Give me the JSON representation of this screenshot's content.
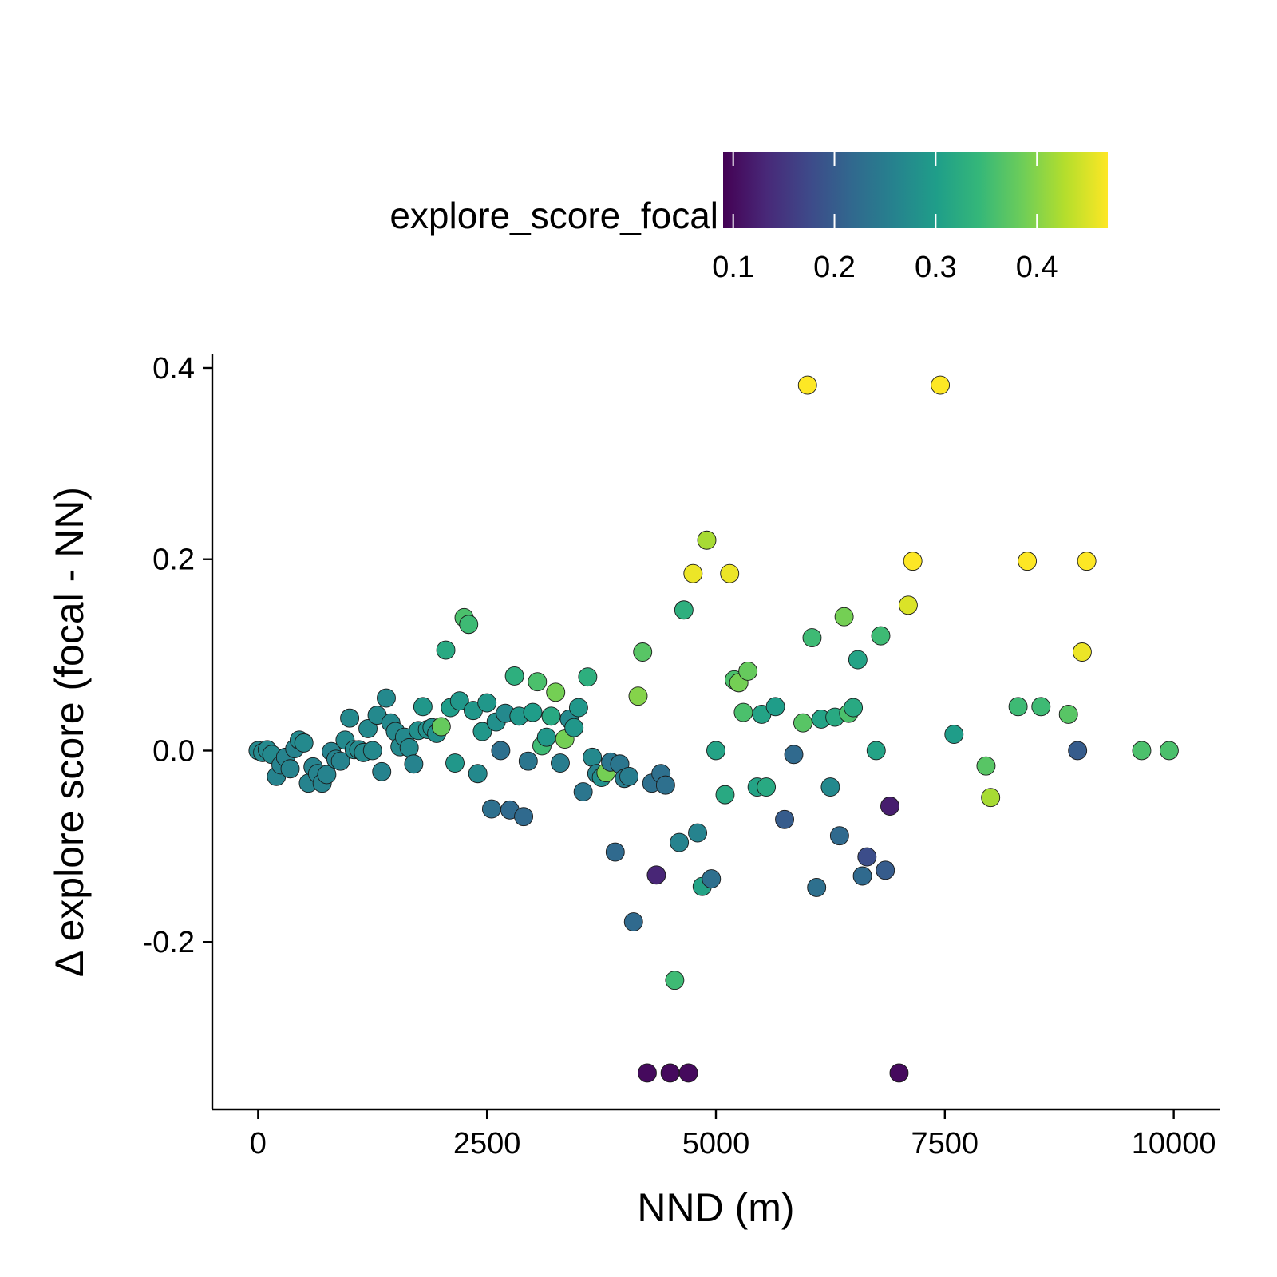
{
  "chart_data": {
    "type": "scatter",
    "title": "",
    "xlabel": "NND (m)",
    "ylabel": "Δ explore score (focal - NN)",
    "xlim": [
      -500,
      10500
    ],
    "ylim": [
      -0.375,
      0.415
    ],
    "x_ticks": [
      0,
      2500,
      5000,
      7500,
      10000
    ],
    "x_tick_labels": [
      "0",
      "2500",
      "5000",
      "7500",
      "10000"
    ],
    "y_ticks": [
      0.4,
      0.2,
      0.0,
      -0.2
    ],
    "y_tick_labels": [
      "0.4",
      "0.2",
      "0.0",
      "-0.2"
    ],
    "grid": false,
    "legend": {
      "position": "top",
      "title": "explore_score_focal",
      "type": "colorbar",
      "palette": "viridis",
      "range": [
        0.09,
        0.47
      ],
      "ticks": [
        0.1,
        0.2,
        0.3,
        0.4
      ],
      "tick_labels": [
        "0.1",
        "0.2",
        "0.3",
        "0.4"
      ],
      "colors": [
        "#440154",
        "#482878",
        "#3E4989",
        "#31688E",
        "#26828E",
        "#1F9E89",
        "#35B779",
        "#6DCD59",
        "#B4DE2C",
        "#FDE725"
      ]
    },
    "points": [
      {
        "x": 0,
        "y": 0.0,
        "c": 0.27
      },
      {
        "x": 50,
        "y": -0.002,
        "c": 0.27
      },
      {
        "x": 100,
        "y": 0.001,
        "c": 0.27
      },
      {
        "x": 150,
        "y": -0.004,
        "c": 0.27
      },
      {
        "x": 200,
        "y": -0.027,
        "c": 0.26
      },
      {
        "x": 250,
        "y": -0.015,
        "c": 0.26
      },
      {
        "x": 300,
        "y": -0.007,
        "c": 0.26
      },
      {
        "x": 350,
        "y": -0.019,
        "c": 0.26
      },
      {
        "x": 400,
        "y": 0.002,
        "c": 0.26
      },
      {
        "x": 450,
        "y": 0.011,
        "c": 0.27
      },
      {
        "x": 500,
        "y": 0.008,
        "c": 0.27
      },
      {
        "x": 550,
        "y": -0.034,
        "c": 0.26
      },
      {
        "x": 600,
        "y": -0.017,
        "c": 0.26
      },
      {
        "x": 650,
        "y": -0.024,
        "c": 0.26
      },
      {
        "x": 700,
        "y": -0.034,
        "c": 0.26
      },
      {
        "x": 750,
        "y": -0.025,
        "c": 0.26
      },
      {
        "x": 800,
        "y": -0.001,
        "c": 0.26
      },
      {
        "x": 850,
        "y": -0.009,
        "c": 0.26
      },
      {
        "x": 900,
        "y": -0.011,
        "c": 0.26
      },
      {
        "x": 950,
        "y": 0.011,
        "c": 0.27
      },
      {
        "x": 1000,
        "y": 0.034,
        "c": 0.27
      },
      {
        "x": 1050,
        "y": 0.001,
        "c": 0.27
      },
      {
        "x": 1100,
        "y": 0.001,
        "c": 0.27
      },
      {
        "x": 1150,
        "y": -0.002,
        "c": 0.27
      },
      {
        "x": 1200,
        "y": 0.023,
        "c": 0.27
      },
      {
        "x": 1250,
        "y": 0.0,
        "c": 0.27
      },
      {
        "x": 1300,
        "y": 0.037,
        "c": 0.27
      },
      {
        "x": 1350,
        "y": -0.022,
        "c": 0.26
      },
      {
        "x": 1400,
        "y": 0.055,
        "c": 0.27
      },
      {
        "x": 1450,
        "y": 0.029,
        "c": 0.27
      },
      {
        "x": 1500,
        "y": 0.02,
        "c": 0.27
      },
      {
        "x": 1550,
        "y": 0.004,
        "c": 0.27
      },
      {
        "x": 1600,
        "y": 0.014,
        "c": 0.27
      },
      {
        "x": 1650,
        "y": 0.003,
        "c": 0.27
      },
      {
        "x": 1700,
        "y": -0.014,
        "c": 0.26
      },
      {
        "x": 1750,
        "y": 0.021,
        "c": 0.28
      },
      {
        "x": 1800,
        "y": 0.046,
        "c": 0.29
      },
      {
        "x": 1850,
        "y": 0.022,
        "c": 0.28
      },
      {
        "x": 1900,
        "y": 0.024,
        "c": 0.28
      },
      {
        "x": 1950,
        "y": 0.018,
        "c": 0.28
      },
      {
        "x": 2000,
        "y": 0.025,
        "c": 0.38
      },
      {
        "x": 2050,
        "y": 0.105,
        "c": 0.32
      },
      {
        "x": 2100,
        "y": 0.045,
        "c": 0.3
      },
      {
        "x": 2150,
        "y": -0.013,
        "c": 0.29
      },
      {
        "x": 2200,
        "y": 0.052,
        "c": 0.29
      },
      {
        "x": 2250,
        "y": 0.139,
        "c": 0.36
      },
      {
        "x": 2300,
        "y": 0.132,
        "c": 0.35
      },
      {
        "x": 2350,
        "y": 0.042,
        "c": 0.29
      },
      {
        "x": 2400,
        "y": -0.024,
        "c": 0.27
      },
      {
        "x": 2450,
        "y": 0.02,
        "c": 0.29
      },
      {
        "x": 2500,
        "y": 0.05,
        "c": 0.29
      },
      {
        "x": 2550,
        "y": -0.061,
        "c": 0.23
      },
      {
        "x": 2600,
        "y": 0.03,
        "c": 0.28
      },
      {
        "x": 2650,
        "y": 0.0,
        "c": 0.23
      },
      {
        "x": 2700,
        "y": 0.039,
        "c": 0.27
      },
      {
        "x": 2750,
        "y": -0.062,
        "c": 0.22
      },
      {
        "x": 2800,
        "y": 0.078,
        "c": 0.33
      },
      {
        "x": 2850,
        "y": 0.036,
        "c": 0.29
      },
      {
        "x": 2900,
        "y": -0.069,
        "c": 0.22
      },
      {
        "x": 2950,
        "y": -0.011,
        "c": 0.24
      },
      {
        "x": 3000,
        "y": 0.04,
        "c": 0.3
      },
      {
        "x": 3050,
        "y": 0.072,
        "c": 0.36
      },
      {
        "x": 3100,
        "y": 0.005,
        "c": 0.35
      },
      {
        "x": 3150,
        "y": 0.014,
        "c": 0.29
      },
      {
        "x": 3200,
        "y": 0.036,
        "c": 0.32
      },
      {
        "x": 3250,
        "y": 0.061,
        "c": 0.39
      },
      {
        "x": 3300,
        "y": -0.013,
        "c": 0.25
      },
      {
        "x": 3350,
        "y": 0.012,
        "c": 0.39
      },
      {
        "x": 3400,
        "y": 0.033,
        "c": 0.27
      },
      {
        "x": 3450,
        "y": 0.024,
        "c": 0.29
      },
      {
        "x": 3500,
        "y": 0.045,
        "c": 0.29
      },
      {
        "x": 3550,
        "y": -0.043,
        "c": 0.24
      },
      {
        "x": 3600,
        "y": 0.077,
        "c": 0.33
      },
      {
        "x": 3650,
        "y": -0.007,
        "c": 0.27
      },
      {
        "x": 3700,
        "y": -0.024,
        "c": 0.26
      },
      {
        "x": 3750,
        "y": -0.028,
        "c": 0.28
      },
      {
        "x": 3800,
        "y": -0.023,
        "c": 0.39
      },
      {
        "x": 3850,
        "y": -0.012,
        "c": 0.24
      },
      {
        "x": 3900,
        "y": -0.106,
        "c": 0.22
      },
      {
        "x": 3950,
        "y": -0.014,
        "c": 0.24
      },
      {
        "x": 4000,
        "y": -0.029,
        "c": 0.25
      },
      {
        "x": 4050,
        "y": -0.027,
        "c": 0.25
      },
      {
        "x": 4100,
        "y": -0.179,
        "c": 0.22
      },
      {
        "x": 4150,
        "y": 0.057,
        "c": 0.4
      },
      {
        "x": 4200,
        "y": 0.103,
        "c": 0.37
      },
      {
        "x": 4250,
        "y": -0.337,
        "c": 0.1
      },
      {
        "x": 4300,
        "y": -0.034,
        "c": 0.23
      },
      {
        "x": 4350,
        "y": -0.13,
        "c": 0.13
      },
      {
        "x": 4400,
        "y": -0.024,
        "c": 0.23
      },
      {
        "x": 4450,
        "y": -0.036,
        "c": 0.23
      },
      {
        "x": 4500,
        "y": -0.337,
        "c": 0.1
      },
      {
        "x": 4550,
        "y": -0.24,
        "c": 0.35
      },
      {
        "x": 4600,
        "y": -0.096,
        "c": 0.26
      },
      {
        "x": 4650,
        "y": 0.147,
        "c": 0.33
      },
      {
        "x": 4700,
        "y": -0.337,
        "c": 0.1
      },
      {
        "x": 4750,
        "y": 0.185,
        "c": 0.46
      },
      {
        "x": 4800,
        "y": -0.086,
        "c": 0.26
      },
      {
        "x": 4850,
        "y": -0.142,
        "c": 0.31
      },
      {
        "x": 4900,
        "y": 0.22,
        "c": 0.42
      },
      {
        "x": 4950,
        "y": -0.134,
        "c": 0.23
      },
      {
        "x": 5000,
        "y": 0.0,
        "c": 0.31
      },
      {
        "x": 5100,
        "y": -0.046,
        "c": 0.32
      },
      {
        "x": 5150,
        "y": 0.185,
        "c": 0.46
      },
      {
        "x": 5200,
        "y": 0.074,
        "c": 0.36
      },
      {
        "x": 5250,
        "y": 0.071,
        "c": 0.39
      },
      {
        "x": 5300,
        "y": 0.04,
        "c": 0.36
      },
      {
        "x": 5350,
        "y": 0.083,
        "c": 0.38
      },
      {
        "x": 5450,
        "y": -0.038,
        "c": 0.31
      },
      {
        "x": 5500,
        "y": 0.038,
        "c": 0.31
      },
      {
        "x": 5550,
        "y": -0.038,
        "c": 0.32
      },
      {
        "x": 5650,
        "y": 0.046,
        "c": 0.3
      },
      {
        "x": 5750,
        "y": -0.072,
        "c": 0.2
      },
      {
        "x": 5850,
        "y": -0.004,
        "c": 0.22
      },
      {
        "x": 5950,
        "y": 0.029,
        "c": 0.37
      },
      {
        "x": 6000,
        "y": 0.382,
        "c": 0.47
      },
      {
        "x": 6050,
        "y": 0.118,
        "c": 0.35
      },
      {
        "x": 6100,
        "y": -0.143,
        "c": 0.23
      },
      {
        "x": 6150,
        "y": 0.033,
        "c": 0.31
      },
      {
        "x": 6250,
        "y": -0.038,
        "c": 0.27
      },
      {
        "x": 6300,
        "y": 0.035,
        "c": 0.32
      },
      {
        "x": 6350,
        "y": -0.089,
        "c": 0.22
      },
      {
        "x": 6400,
        "y": 0.14,
        "c": 0.39
      },
      {
        "x": 6450,
        "y": 0.039,
        "c": 0.36
      },
      {
        "x": 6500,
        "y": 0.045,
        "c": 0.32
      },
      {
        "x": 6550,
        "y": 0.095,
        "c": 0.31
      },
      {
        "x": 6600,
        "y": -0.131,
        "c": 0.22
      },
      {
        "x": 6650,
        "y": -0.111,
        "c": 0.18
      },
      {
        "x": 6750,
        "y": 0.0,
        "c": 0.31
      },
      {
        "x": 6800,
        "y": 0.12,
        "c": 0.35
      },
      {
        "x": 6850,
        "y": -0.125,
        "c": 0.2
      },
      {
        "x": 6900,
        "y": -0.058,
        "c": 0.12
      },
      {
        "x": 7000,
        "y": -0.337,
        "c": 0.1
      },
      {
        "x": 7100,
        "y": 0.152,
        "c": 0.45
      },
      {
        "x": 7150,
        "y": 0.198,
        "c": 0.47
      },
      {
        "x": 7450,
        "y": 0.382,
        "c": 0.47
      },
      {
        "x": 7600,
        "y": 0.017,
        "c": 0.3
      },
      {
        "x": 7950,
        "y": -0.016,
        "c": 0.37
      },
      {
        "x": 8000,
        "y": -0.049,
        "c": 0.42
      },
      {
        "x": 8300,
        "y": 0.046,
        "c": 0.35
      },
      {
        "x": 8400,
        "y": 0.198,
        "c": 0.47
      },
      {
        "x": 8550,
        "y": 0.046,
        "c": 0.35
      },
      {
        "x": 8850,
        "y": 0.038,
        "c": 0.37
      },
      {
        "x": 8950,
        "y": 0.0,
        "c": 0.2
      },
      {
        "x": 9000,
        "y": 0.103,
        "c": 0.46
      },
      {
        "x": 9050,
        "y": 0.198,
        "c": 0.47
      },
      {
        "x": 9650,
        "y": 0.0,
        "c": 0.36
      },
      {
        "x": 9950,
        "y": 0.0,
        "c": 0.36
      }
    ]
  }
}
